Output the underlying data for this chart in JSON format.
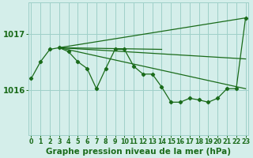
{
  "x_main": [
    0,
    1,
    2,
    3,
    4,
    5,
    6,
    7,
    8,
    9,
    10,
    11,
    12,
    13,
    14,
    15,
    16,
    17,
    18,
    19,
    20,
    21,
    22,
    23
  ],
  "y_main": [
    1016.2,
    1016.5,
    1016.72,
    1016.75,
    1016.68,
    1016.5,
    1016.38,
    1016.02,
    1016.38,
    1016.72,
    1016.72,
    1016.42,
    1016.28,
    1016.28,
    1016.05,
    1015.78,
    1015.78,
    1015.85,
    1015.82,
    1015.78,
    1015.85,
    1016.02,
    1016.02,
    1017.28
  ],
  "trend_lines": [
    {
      "x": [
        3,
        23
      ],
      "y": [
        1016.75,
        1017.28
      ]
    },
    {
      "x": [
        3,
        23
      ],
      "y": [
        1016.75,
        1016.55
      ]
    },
    {
      "x": [
        3,
        14
      ],
      "y": [
        1016.75,
        1016.72
      ]
    },
    {
      "x": [
        3,
        23
      ],
      "y": [
        1016.75,
        1016.02
      ]
    }
  ],
  "line_color": "#1a6b1a",
  "marker": "D",
  "markersize": 2.2,
  "linewidth": 0.9,
  "bg_color": "#d4eeea",
  "grid_color": "#9fd0c8",
  "title": "Graphe pression niveau de la mer (hPa)",
  "title_color": "#1a6b1a",
  "title_fontsize": 7.5,
  "tick_color": "#1a6b1a",
  "tick_fontsize": 5.8,
  "yticks": [
    1016,
    1017
  ],
  "ylim": [
    1015.2,
    1017.55
  ],
  "xlim": [
    -0.3,
    23.3
  ]
}
